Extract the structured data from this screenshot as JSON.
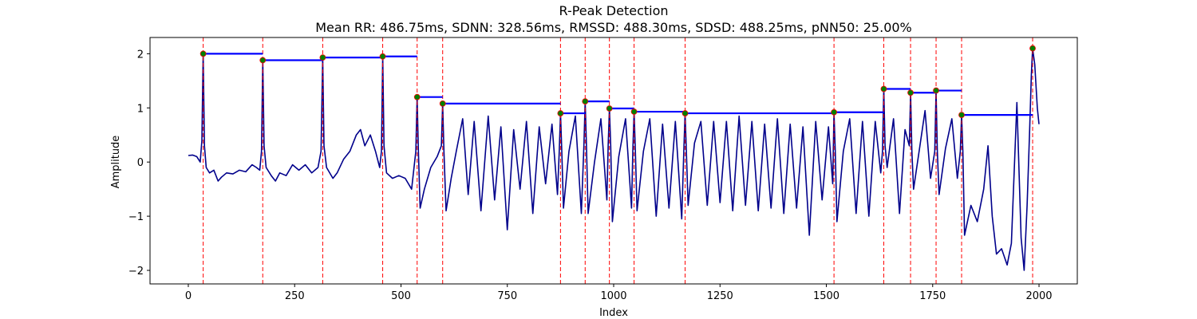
{
  "chart_data": {
    "type": "line",
    "title": "R-Peak Detection",
    "subtitle": "Mean RR: 486.75ms, SDNN: 328.56ms, RMSSD: 488.30ms, SDSD: 488.25ms, pNN50: 25.00%",
    "xlabel": "Index",
    "ylabel": "Amplitude",
    "xlim": [
      -90,
      2090
    ],
    "ylim": [
      -2.25,
      2.3
    ],
    "xticks": [
      0,
      250,
      500,
      750,
      1000,
      1250,
      1500,
      1750,
      2000
    ],
    "yticks": [
      -2,
      -1,
      0,
      1,
      2
    ],
    "grid": false,
    "colors": {
      "signal": "#00008b",
      "peak_line": "#ff0000",
      "rr_bar": "#0000ff",
      "peak_marker_fill": "#008000",
      "peak_marker_edge": "#ff0000"
    },
    "peaks": [
      {
        "x": 35,
        "y": 2.0
      },
      {
        "x": 175,
        "y": 1.88
      },
      {
        "x": 316,
        "y": 1.93
      },
      {
        "x": 457,
        "y": 1.95
      },
      {
        "x": 538,
        "y": 1.2
      },
      {
        "x": 598,
        "y": 1.08
      },
      {
        "x": 875,
        "y": 0.9
      },
      {
        "x": 933,
        "y": 1.12
      },
      {
        "x": 990,
        "y": 0.99
      },
      {
        "x": 1048,
        "y": 0.93
      },
      {
        "x": 1168,
        "y": 0.9
      },
      {
        "x": 1518,
        "y": 0.92
      },
      {
        "x": 1635,
        "y": 1.35
      },
      {
        "x": 1698,
        "y": 1.28
      },
      {
        "x": 1758,
        "y": 1.32
      },
      {
        "x": 1818,
        "y": 0.87
      },
      {
        "x": 1985,
        "y": 2.1
      }
    ],
    "series": [
      {
        "values": [
          [
            0,
            0.12
          ],
          [
            10,
            0.13
          ],
          [
            20,
            0.1
          ],
          [
            28,
            0.0
          ],
          [
            32,
            0.4
          ],
          [
            35,
            2.0
          ],
          [
            38,
            0.3
          ],
          [
            42,
            -0.1
          ],
          [
            50,
            -0.2
          ],
          [
            60,
            -0.15
          ],
          [
            70,
            -0.35
          ],
          [
            78,
            -0.28
          ],
          [
            90,
            -0.2
          ],
          [
            105,
            -0.22
          ],
          [
            120,
            -0.15
          ],
          [
            135,
            -0.18
          ],
          [
            150,
            -0.05
          ],
          [
            160,
            -0.1
          ],
          [
            168,
            -0.15
          ],
          [
            172,
            0.2
          ],
          [
            175,
            1.88
          ],
          [
            178,
            0.3
          ],
          [
            183,
            -0.1
          ],
          [
            195,
            -0.25
          ],
          [
            205,
            -0.35
          ],
          [
            215,
            -0.2
          ],
          [
            230,
            -0.25
          ],
          [
            245,
            -0.05
          ],
          [
            260,
            -0.15
          ],
          [
            275,
            -0.05
          ],
          [
            290,
            -0.2
          ],
          [
            305,
            -0.1
          ],
          [
            312,
            0.2
          ],
          [
            316,
            1.93
          ],
          [
            319,
            0.3
          ],
          [
            325,
            -0.1
          ],
          [
            340,
            -0.3
          ],
          [
            350,
            -0.2
          ],
          [
            365,
            0.05
          ],
          [
            380,
            0.2
          ],
          [
            395,
            0.5
          ],
          [
            405,
            0.6
          ],
          [
            415,
            0.3
          ],
          [
            428,
            0.5
          ],
          [
            440,
            0.2
          ],
          [
            450,
            -0.1
          ],
          [
            454,
            0.2
          ],
          [
            457,
            1.95
          ],
          [
            460,
            0.3
          ],
          [
            466,
            -0.2
          ],
          [
            480,
            -0.3
          ],
          [
            495,
            -0.25
          ],
          [
            510,
            -0.3
          ],
          [
            525,
            -0.5
          ],
          [
            535,
            0.2
          ],
          [
            538,
            1.2
          ],
          [
            541,
            0.2
          ],
          [
            545,
            -0.85
          ],
          [
            555,
            -0.5
          ],
          [
            570,
            -0.1
          ],
          [
            585,
            0.1
          ],
          [
            595,
            0.3
          ],
          [
            598,
            1.08
          ],
          [
            601,
            0.2
          ],
          [
            606,
            -0.9
          ],
          [
            618,
            -0.3
          ],
          [
            630,
            0.2
          ],
          [
            645,
            0.8
          ],
          [
            658,
            -0.6
          ],
          [
            672,
            0.75
          ],
          [
            688,
            -0.9
          ],
          [
            705,
            0.85
          ],
          [
            720,
            -0.7
          ],
          [
            735,
            0.65
          ],
          [
            750,
            -1.25
          ],
          [
            765,
            0.6
          ],
          [
            780,
            -0.5
          ],
          [
            795,
            0.75
          ],
          [
            810,
            -0.95
          ],
          [
            825,
            0.65
          ],
          [
            840,
            -0.4
          ],
          [
            855,
            0.7
          ],
          [
            868,
            -0.6
          ],
          [
            872,
            0.2
          ],
          [
            875,
            0.9
          ],
          [
            878,
            0.2
          ],
          [
            882,
            -0.85
          ],
          [
            895,
            0.2
          ],
          [
            910,
            0.85
          ],
          [
            924,
            -0.95
          ],
          [
            930,
            0.3
          ],
          [
            933,
            1.12
          ],
          [
            936,
            0.3
          ],
          [
            940,
            -0.95
          ],
          [
            955,
            0.0
          ],
          [
            970,
            0.8
          ],
          [
            984,
            -0.7
          ],
          [
            987,
            0.3
          ],
          [
            990,
            0.99
          ],
          [
            993,
            0.3
          ],
          [
            997,
            -1.1
          ],
          [
            1012,
            0.1
          ],
          [
            1028,
            0.8
          ],
          [
            1042,
            -0.85
          ],
          [
            1045,
            0.2
          ],
          [
            1048,
            0.93
          ],
          [
            1051,
            0.2
          ],
          [
            1055,
            -0.9
          ],
          [
            1070,
            0.2
          ],
          [
            1085,
            0.8
          ],
          [
            1100,
            -1.0
          ],
          [
            1115,
            0.7
          ],
          [
            1130,
            -0.85
          ],
          [
            1145,
            0.75
          ],
          [
            1160,
            -1.05
          ],
          [
            1165,
            0.2
          ],
          [
            1168,
            0.9
          ],
          [
            1171,
            0.2
          ],
          [
            1175,
            -0.8
          ],
          [
            1190,
            0.35
          ],
          [
            1205,
            0.75
          ],
          [
            1220,
            -0.8
          ],
          [
            1235,
            0.75
          ],
          [
            1250,
            -0.75
          ],
          [
            1265,
            0.75
          ],
          [
            1280,
            -0.9
          ],
          [
            1295,
            0.85
          ],
          [
            1310,
            -0.8
          ],
          [
            1325,
            0.75
          ],
          [
            1340,
            -0.9
          ],
          [
            1355,
            0.7
          ],
          [
            1370,
            -0.85
          ],
          [
            1385,
            0.8
          ],
          [
            1400,
            -0.95
          ],
          [
            1415,
            0.7
          ],
          [
            1430,
            -0.85
          ],
          [
            1445,
            0.65
          ],
          [
            1460,
            -1.35
          ],
          [
            1475,
            0.75
          ],
          [
            1490,
            -0.7
          ],
          [
            1505,
            0.65
          ],
          [
            1515,
            -0.4
          ],
          [
            1518,
            0.92
          ],
          [
            1521,
            0.2
          ],
          [
            1525,
            -1.1
          ],
          [
            1540,
            0.2
          ],
          [
            1555,
            0.8
          ],
          [
            1570,
            -0.95
          ],
          [
            1585,
            0.75
          ],
          [
            1600,
            -1.0
          ],
          [
            1615,
            0.75
          ],
          [
            1628,
            -0.2
          ],
          [
            1632,
            0.2
          ],
          [
            1635,
            1.35
          ],
          [
            1638,
            0.3
          ],
          [
            1643,
            -0.1
          ],
          [
            1658,
            0.8
          ],
          [
            1672,
            -0.95
          ],
          [
            1685,
            0.6
          ],
          [
            1695,
            0.3
          ],
          [
            1698,
            1.28
          ],
          [
            1701,
            0.2
          ],
          [
            1705,
            -0.5
          ],
          [
            1720,
            0.3
          ],
          [
            1732,
            0.95
          ],
          [
            1745,
            -0.3
          ],
          [
            1755,
            0.2
          ],
          [
            1758,
            1.32
          ],
          [
            1761,
            0.2
          ],
          [
            1765,
            -0.6
          ],
          [
            1780,
            0.25
          ],
          [
            1795,
            0.8
          ],
          [
            1808,
            -0.3
          ],
          [
            1815,
            0.2
          ],
          [
            1818,
            0.87
          ],
          [
            1821,
            0.2
          ],
          [
            1825,
            -1.35
          ],
          [
            1840,
            -0.8
          ],
          [
            1855,
            -1.1
          ],
          [
            1870,
            -0.5
          ],
          [
            1880,
            0.3
          ],
          [
            1890,
            -1.0
          ],
          [
            1900,
            -1.7
          ],
          [
            1912,
            -1.6
          ],
          [
            1925,
            -1.9
          ],
          [
            1935,
            -1.5
          ],
          [
            1948,
            1.1
          ],
          [
            1958,
            -1.4
          ],
          [
            1965,
            -2.0
          ],
          [
            1972,
            -0.8
          ],
          [
            1978,
            0.6
          ],
          [
            1982,
            1.6
          ],
          [
            1985,
            2.1
          ],
          [
            1990,
            1.8
          ],
          [
            1996,
            1.0
          ],
          [
            2000,
            0.7
          ]
        ]
      }
    ]
  }
}
